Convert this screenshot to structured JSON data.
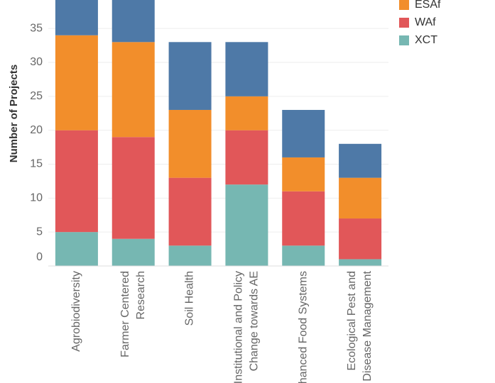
{
  "chart_data": {
    "type": "stacked_bar",
    "y_label": "Number of Projects",
    "categories": [
      "Agrobiodiversity",
      "Farmer Centered\nResearch",
      "Soil Health",
      "Institutional and Policy\nChange towards AE",
      "Enhanced Food Systems",
      "Ecological Pest and\nDisease Management"
    ],
    "series": [
      {
        "name": null,
        "color": "#4e79a7",
        "values": [
          6,
          7,
          10,
          8,
          7,
          5
        ]
      },
      {
        "name": "ESAf",
        "color": "#f28e2b",
        "values": [
          14,
          14,
          10,
          5,
          5,
          6
        ]
      },
      {
        "name": "WAf",
        "color": "#e15759",
        "values": [
          15,
          15,
          10,
          8,
          8,
          6
        ]
      },
      {
        "name": "XCT",
        "color": "#76b7b2",
        "values": [
          5,
          4,
          3,
          12,
          3,
          1
        ]
      }
    ],
    "ylim": [
      0,
      39.2
    ],
    "yticks": [
      0,
      5,
      10,
      15,
      20,
      25,
      30,
      35
    ],
    "grid": true
  }
}
